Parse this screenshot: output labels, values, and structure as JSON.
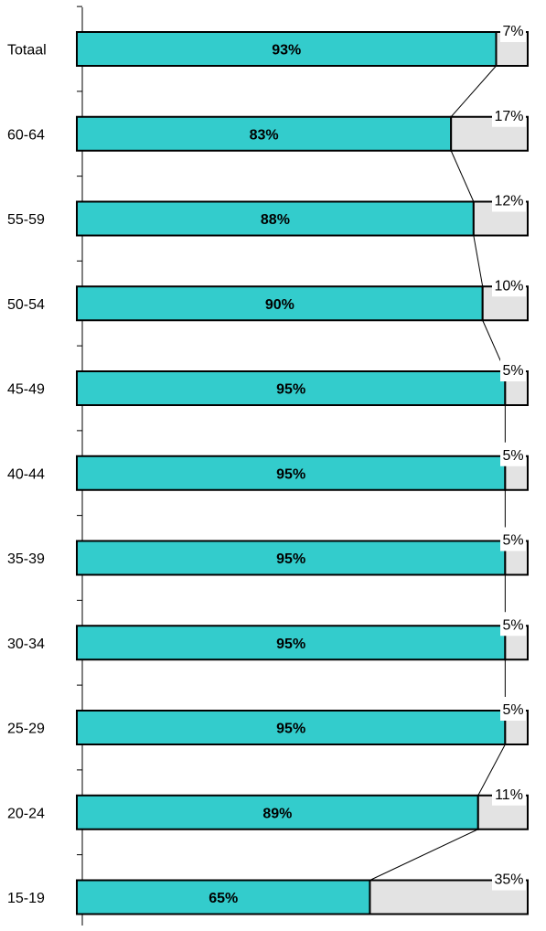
{
  "chart_data": {
    "type": "bar",
    "orientation": "horizontal",
    "stacked": true,
    "percent_stacked": true,
    "categories": [
      "Totaal",
      "60-64",
      "55-59",
      "50-54",
      "45-49",
      "40-44",
      "35-39",
      "30-34",
      "25-29",
      "20-24",
      "15-19"
    ],
    "series": [
      {
        "values": [
          93,
          83,
          88,
          90,
          95,
          95,
          95,
          95,
          95,
          89,
          65
        ],
        "color": "#33cccc"
      },
      {
        "values": [
          7,
          17,
          12,
          10,
          5,
          5,
          5,
          5,
          5,
          11,
          35
        ],
        "color": "#e3e3e3"
      }
    ],
    "inner_labels": [
      "93%",
      "83%",
      "88%",
      "90%",
      "95%",
      "95%",
      "95%",
      "95%",
      "95%",
      "89%",
      "65%"
    ],
    "outer_labels": [
      "7%",
      "17%",
      "12%",
      "10%",
      "5%",
      "5%",
      "5%",
      "5%",
      "5%",
      "11%",
      "35%"
    ],
    "xlim": [
      0,
      100
    ],
    "series_lines": true,
    "legend": false,
    "grid": false
  }
}
